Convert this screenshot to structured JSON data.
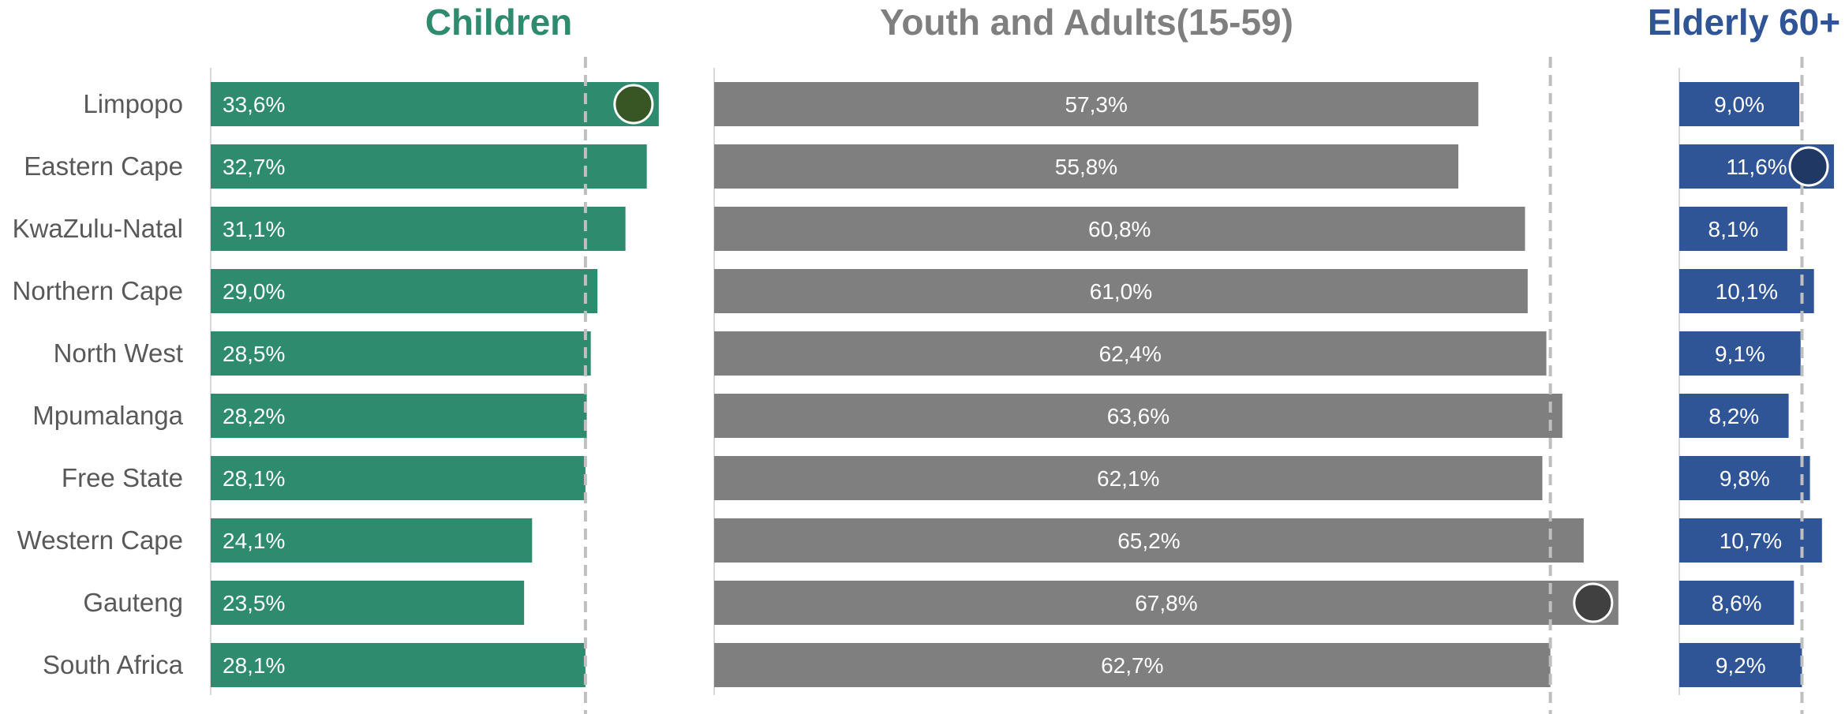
{
  "chart_data": {
    "type": "bar",
    "orientation": "horizontal",
    "categories": [
      "Limpopo",
      "Eastern Cape",
      "KwaZulu-Natal",
      "Northern Cape",
      "North West",
      "Mpumalanga",
      "Free State",
      "Western Cape",
      "Gauteng",
      "South Africa"
    ],
    "reference_category": "South Africa",
    "series": [
      {
        "name": "Children",
        "color": "#2e8b6e",
        "marker_color": "#375623",
        "values": [
          33.6,
          32.7,
          31.1,
          29.0,
          28.5,
          28.2,
          28.1,
          24.1,
          23.5,
          28.1
        ],
        "labels": [
          "33,6%",
          "32,7%",
          "31,1%",
          "29,0%",
          "28,5%",
          "28,2%",
          "28,1%",
          "24,1%",
          "23,5%",
          "28,1%"
        ],
        "highlight": "Limpopo"
      },
      {
        "name": "Youth and Adults(15-59)",
        "color": "#7f7f7f",
        "marker_color": "#404040",
        "values": [
          57.3,
          55.8,
          60.8,
          61.0,
          62.4,
          63.6,
          62.1,
          65.2,
          67.8,
          62.7
        ],
        "labels": [
          "57,3%",
          "55,8%",
          "60,8%",
          "61,0%",
          "62,4%",
          "63,6%",
          "62,1%",
          "65,2%",
          "67,8%",
          "62,7%"
        ],
        "highlight": "Gauteng"
      },
      {
        "name": "Elderly 60+",
        "color": "#2f5597",
        "marker_color": "#1f3864",
        "values": [
          9.0,
          11.6,
          8.1,
          10.1,
          9.1,
          8.2,
          9.8,
          10.7,
          8.6,
          9.2
        ],
        "labels": [
          "9,0%",
          "11,6%",
          "8,1%",
          "10,1%",
          "9,1%",
          "8,2%",
          "9,8%",
          "10,7%",
          "8,6%",
          "9,2%"
        ],
        "highlight": "Eastern Cape"
      }
    ],
    "reference_lines": "dashed line at South Africa value in each panel",
    "grid": false,
    "legend": "none"
  }
}
